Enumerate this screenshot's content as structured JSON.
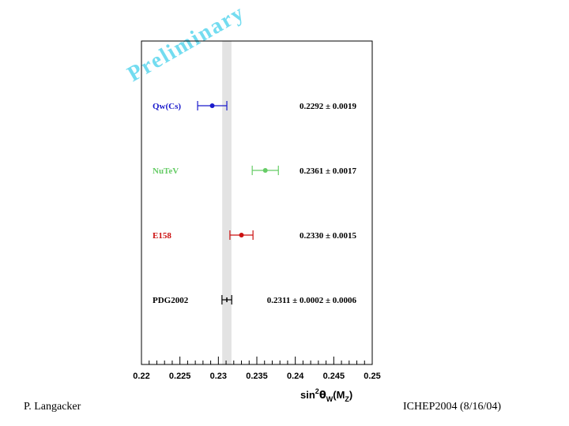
{
  "watermark": "Preliminary",
  "footer": {
    "author": "P. Langacker",
    "conference": "ICHEP2004 (8/16/04)"
  },
  "chart_data": {
    "type": "scatter",
    "x_axis": {
      "label": "sin²θW(MZ)",
      "label_parts": {
        "base": "sin",
        "sup": "2",
        "theta": "θ",
        "sub1": "W",
        "paren_open": "(M",
        "sub2": "Z",
        "paren_close": ")"
      },
      "range": [
        0.22,
        0.25
      ],
      "ticks": [
        "0.22",
        "0.225",
        "0.23",
        "0.235",
        "0.24",
        "0.245",
        "0.25"
      ],
      "tick_values": [
        0.22,
        0.225,
        0.23,
        0.235,
        0.24,
        0.245,
        0.25
      ]
    },
    "band": {
      "low": 0.2305,
      "high": 0.2317,
      "color": "#e3e3e3"
    },
    "grid": false,
    "series": [
      {
        "name": "Qw(Cs)",
        "value": 0.2292,
        "error": 0.0019,
        "label": "0.2292 ± 0.0019",
        "color": "#1a1acc"
      },
      {
        "name": "NuTeV",
        "value": 0.2361,
        "error": 0.0017,
        "label": "0.2361 ± 0.0017",
        "color": "#66cc66"
      },
      {
        "name": "E158",
        "value": 0.233,
        "error": 0.0015,
        "label": "0.2330 ± 0.0015",
        "color": "#cc1111"
      },
      {
        "name": "PDG2002",
        "value": 0.2311,
        "error": 0.0002,
        "error2": 0.0006,
        "label": "0.2311 ± 0.0002 ± 0.0006",
        "color": "#000000"
      }
    ]
  }
}
